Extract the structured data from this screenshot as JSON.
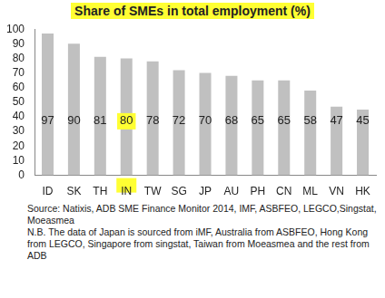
{
  "chart_data": {
    "type": "bar",
    "title": "Share of SMEs in total employment (%)",
    "categories": [
      "ID",
      "SK",
      "TH",
      "IN",
      "TW",
      "SG",
      "JP",
      "AU",
      "PH",
      "CN",
      "ML",
      "VN",
      "HK"
    ],
    "values": [
      97,
      90,
      81,
      80,
      78,
      72,
      70,
      68,
      65,
      65,
      58,
      47,
      45
    ],
    "color": "#c0c0c0",
    "ylim": [
      0,
      100
    ],
    "yticks": [
      0,
      10,
      20,
      30,
      40,
      50,
      60,
      70,
      80,
      90,
      100
    ],
    "grid": false,
    "data_labels": true,
    "source": "Source: Natixis, ADB SME Finance Monitor 2014, IMF, ASBFEO, LEGCO,Singstat, Moeasmea",
    "note": "N.B. The data of Japan is sourced from iMF, Australia from ASBFEO, Hong Kong from LEGCO, Singapore from singstat, Taiwan from Moeasmea and the rest from ADB"
  }
}
